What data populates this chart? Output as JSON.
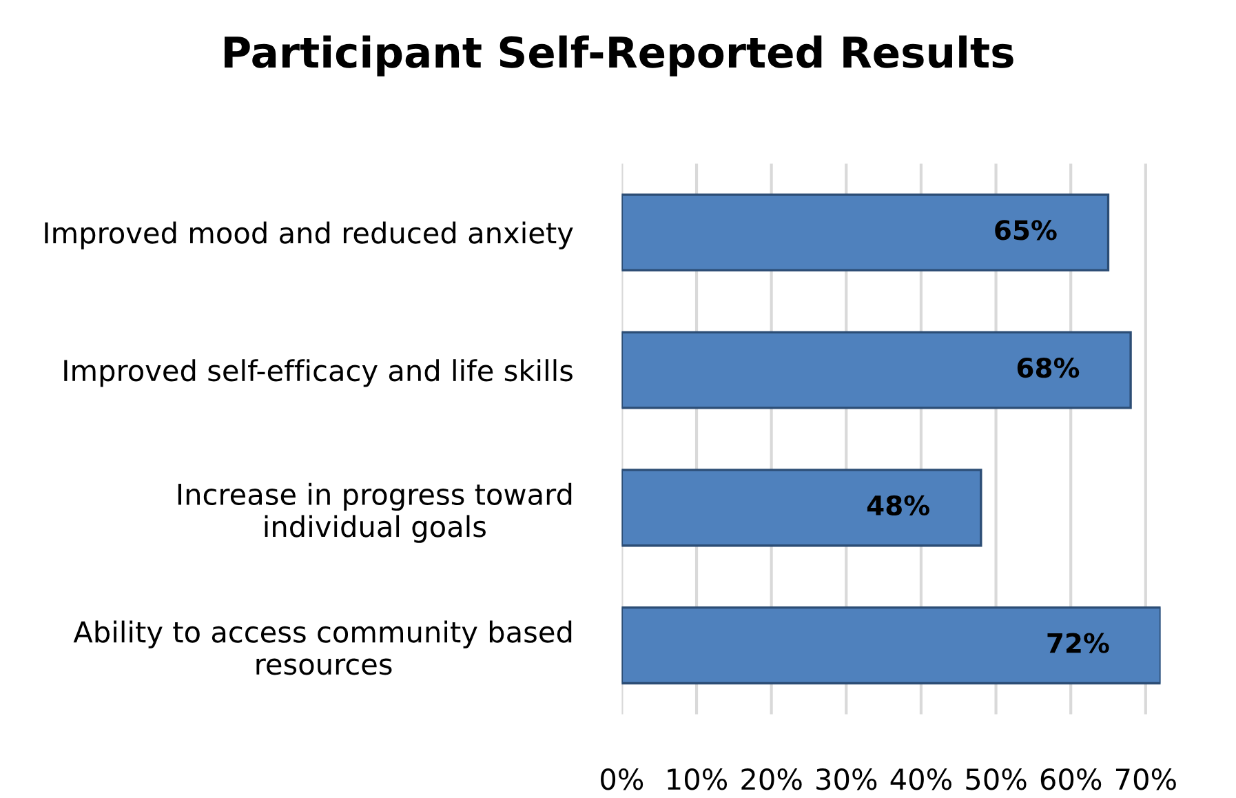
{
  "chart_data": {
    "type": "bar",
    "orientation": "horizontal",
    "title": "Participant Self-Reported Results",
    "categories": [
      "Improved mood and reduced anxiety",
      "Improved self-efficacy and life skills",
      "Increase in progress toward\nindividual goals",
      "Ability to access community based\nresources"
    ],
    "values": [
      65,
      68,
      48,
      72
    ],
    "value_labels": [
      "65%",
      "68%",
      "48%",
      "72%"
    ],
    "color": "#4f81bd",
    "xlim": [
      0,
      72
    ],
    "xticks": [
      {
        "value": 0,
        "label": "0%"
      },
      {
        "value": 10,
        "label": "10%"
      },
      {
        "value": 20,
        "label": "20%"
      },
      {
        "value": 30,
        "label": "30%"
      },
      {
        "value": 40,
        "label": "40%"
      },
      {
        "value": 50,
        "label": "50%"
      },
      {
        "value": 60,
        "label": "60%"
      },
      {
        "value": 70,
        "label": "70%"
      }
    ],
    "grid": "x",
    "legend": false
  }
}
